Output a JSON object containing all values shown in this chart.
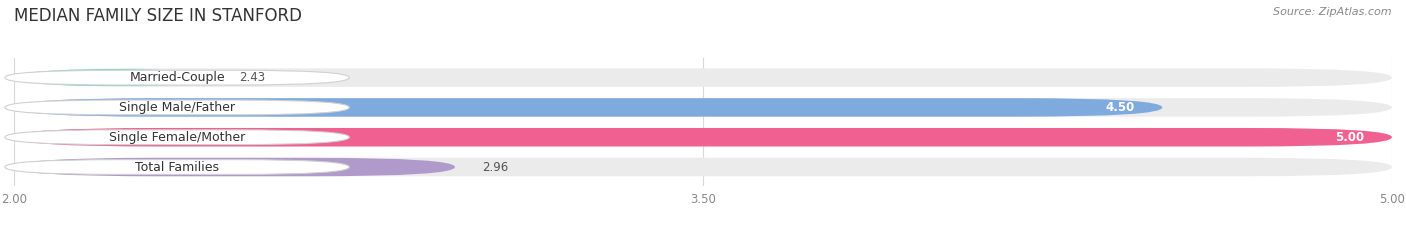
{
  "title": "MEDIAN FAMILY SIZE IN STANFORD",
  "source": "Source: ZipAtlas.com",
  "categories": [
    "Married-Couple",
    "Single Male/Father",
    "Single Female/Mother",
    "Total Families"
  ],
  "values": [
    2.43,
    4.5,
    5.0,
    2.96
  ],
  "bar_colors": [
    "#7dd6cc",
    "#7eaadd",
    "#f06090",
    "#b09acc"
  ],
  "bar_bg_color": "#ebebeb",
  "xmin": 2.0,
  "xmax": 5.0,
  "xticks": [
    2.0,
    3.5,
    5.0
  ],
  "xtick_labels": [
    "2.00",
    "3.50",
    "5.00"
  ],
  "title_fontsize": 12,
  "source_fontsize": 8,
  "label_fontsize": 9,
  "value_fontsize": 8.5,
  "bar_height": 0.62,
  "value_inside_color": "#ffffff",
  "value_outside_color": "#555555",
  "label_text_color": "#333333"
}
